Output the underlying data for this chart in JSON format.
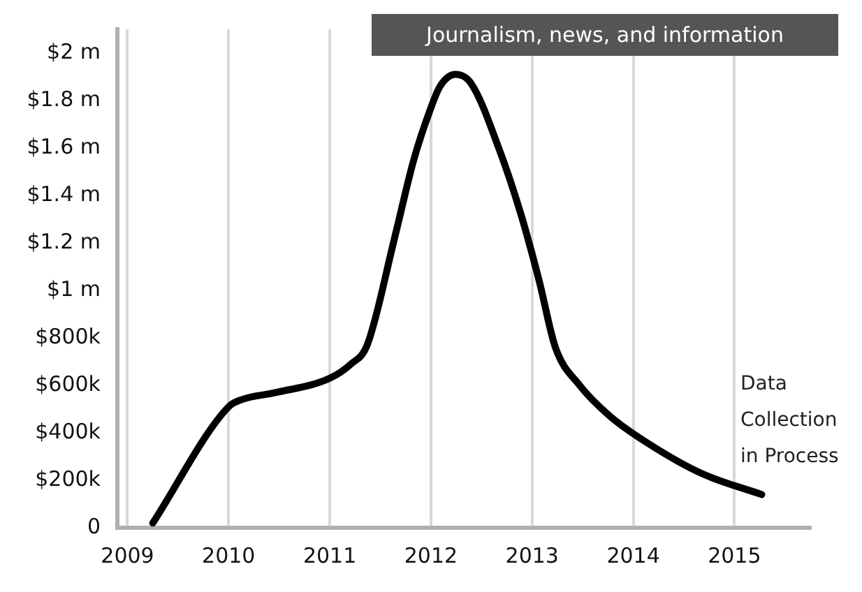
{
  "chart_data": {
    "type": "line",
    "title": "Journalism, news, and information",
    "x": [
      2009.25,
      2010,
      2010.13,
      2010.47,
      2011,
      2011.21,
      2011.37,
      2011.64,
      2011.83,
      2012,
      2012.09,
      2012.24,
      2012.4,
      2012.67,
      2012.89,
      2013.07,
      2013.23,
      2013.47,
      2013.77,
      2014.13,
      2014.67,
      2015.27
    ],
    "series": [
      {
        "color": "#000000",
        "values": [
          20000,
          510000,
          540000,
          570000,
          630000,
          690000,
          770000,
          1220000,
          1550000,
          1770000,
          1860000,
          1910000,
          1870000,
          1600000,
          1320000,
          1040000,
          760000,
          600000,
          470000,
          360000,
          230000,
          140000
        ]
      }
    ],
    "xlim": [
      2008.9,
      2015.75
    ],
    "xticks": [
      2009,
      2010,
      2011,
      2012,
      2013,
      2014,
      2015
    ],
    "ylim": [
      0,
      2100000
    ],
    "yticks": [
      {
        "value": 0,
        "label": "0"
      },
      {
        "value": 200000,
        "label": "$200k"
      },
      {
        "value": 400000,
        "label": "$400k"
      },
      {
        "value": 600000,
        "label": "$600k"
      },
      {
        "value": 800000,
        "label": "$800k"
      },
      {
        "value": 1000000,
        "label": "$1 m"
      },
      {
        "value": 1200000,
        "label": "$1.2 m"
      },
      {
        "value": 1400000,
        "label": "$1.4 m"
      },
      {
        "value": 1600000,
        "label": "$1.6 m"
      },
      {
        "value": 1800000,
        "label": "$1.8 m"
      },
      {
        "value": 2000000,
        "label": "$2 m"
      }
    ],
    "grid": "x",
    "legend": false,
    "marker": "none",
    "line_style": "solid",
    "annotations": [
      "Data Collection in Process"
    ]
  }
}
